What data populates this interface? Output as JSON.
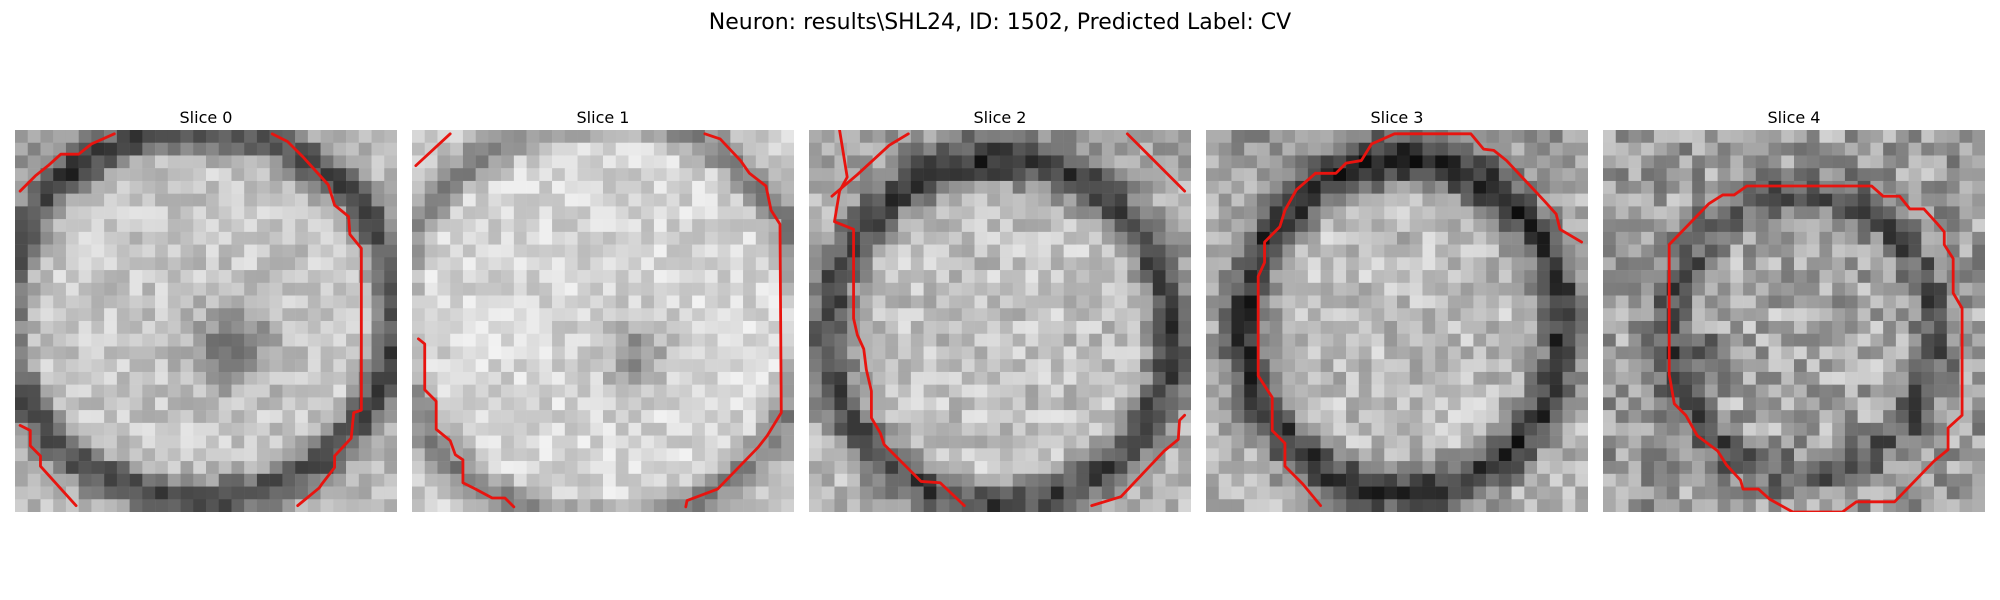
{
  "figure": {
    "title": "Neuron: results\\SHL24, ID: 1502, Predicted Label: CV"
  },
  "panels": [
    {
      "title": "Slice 0"
    },
    {
      "title": "Slice 1"
    },
    {
      "title": "Slice 2"
    },
    {
      "title": "Slice 3"
    },
    {
      "title": "Slice 4"
    }
  ],
  "colors": {
    "contour": "#e8140f",
    "background": "#ffffff"
  }
}
